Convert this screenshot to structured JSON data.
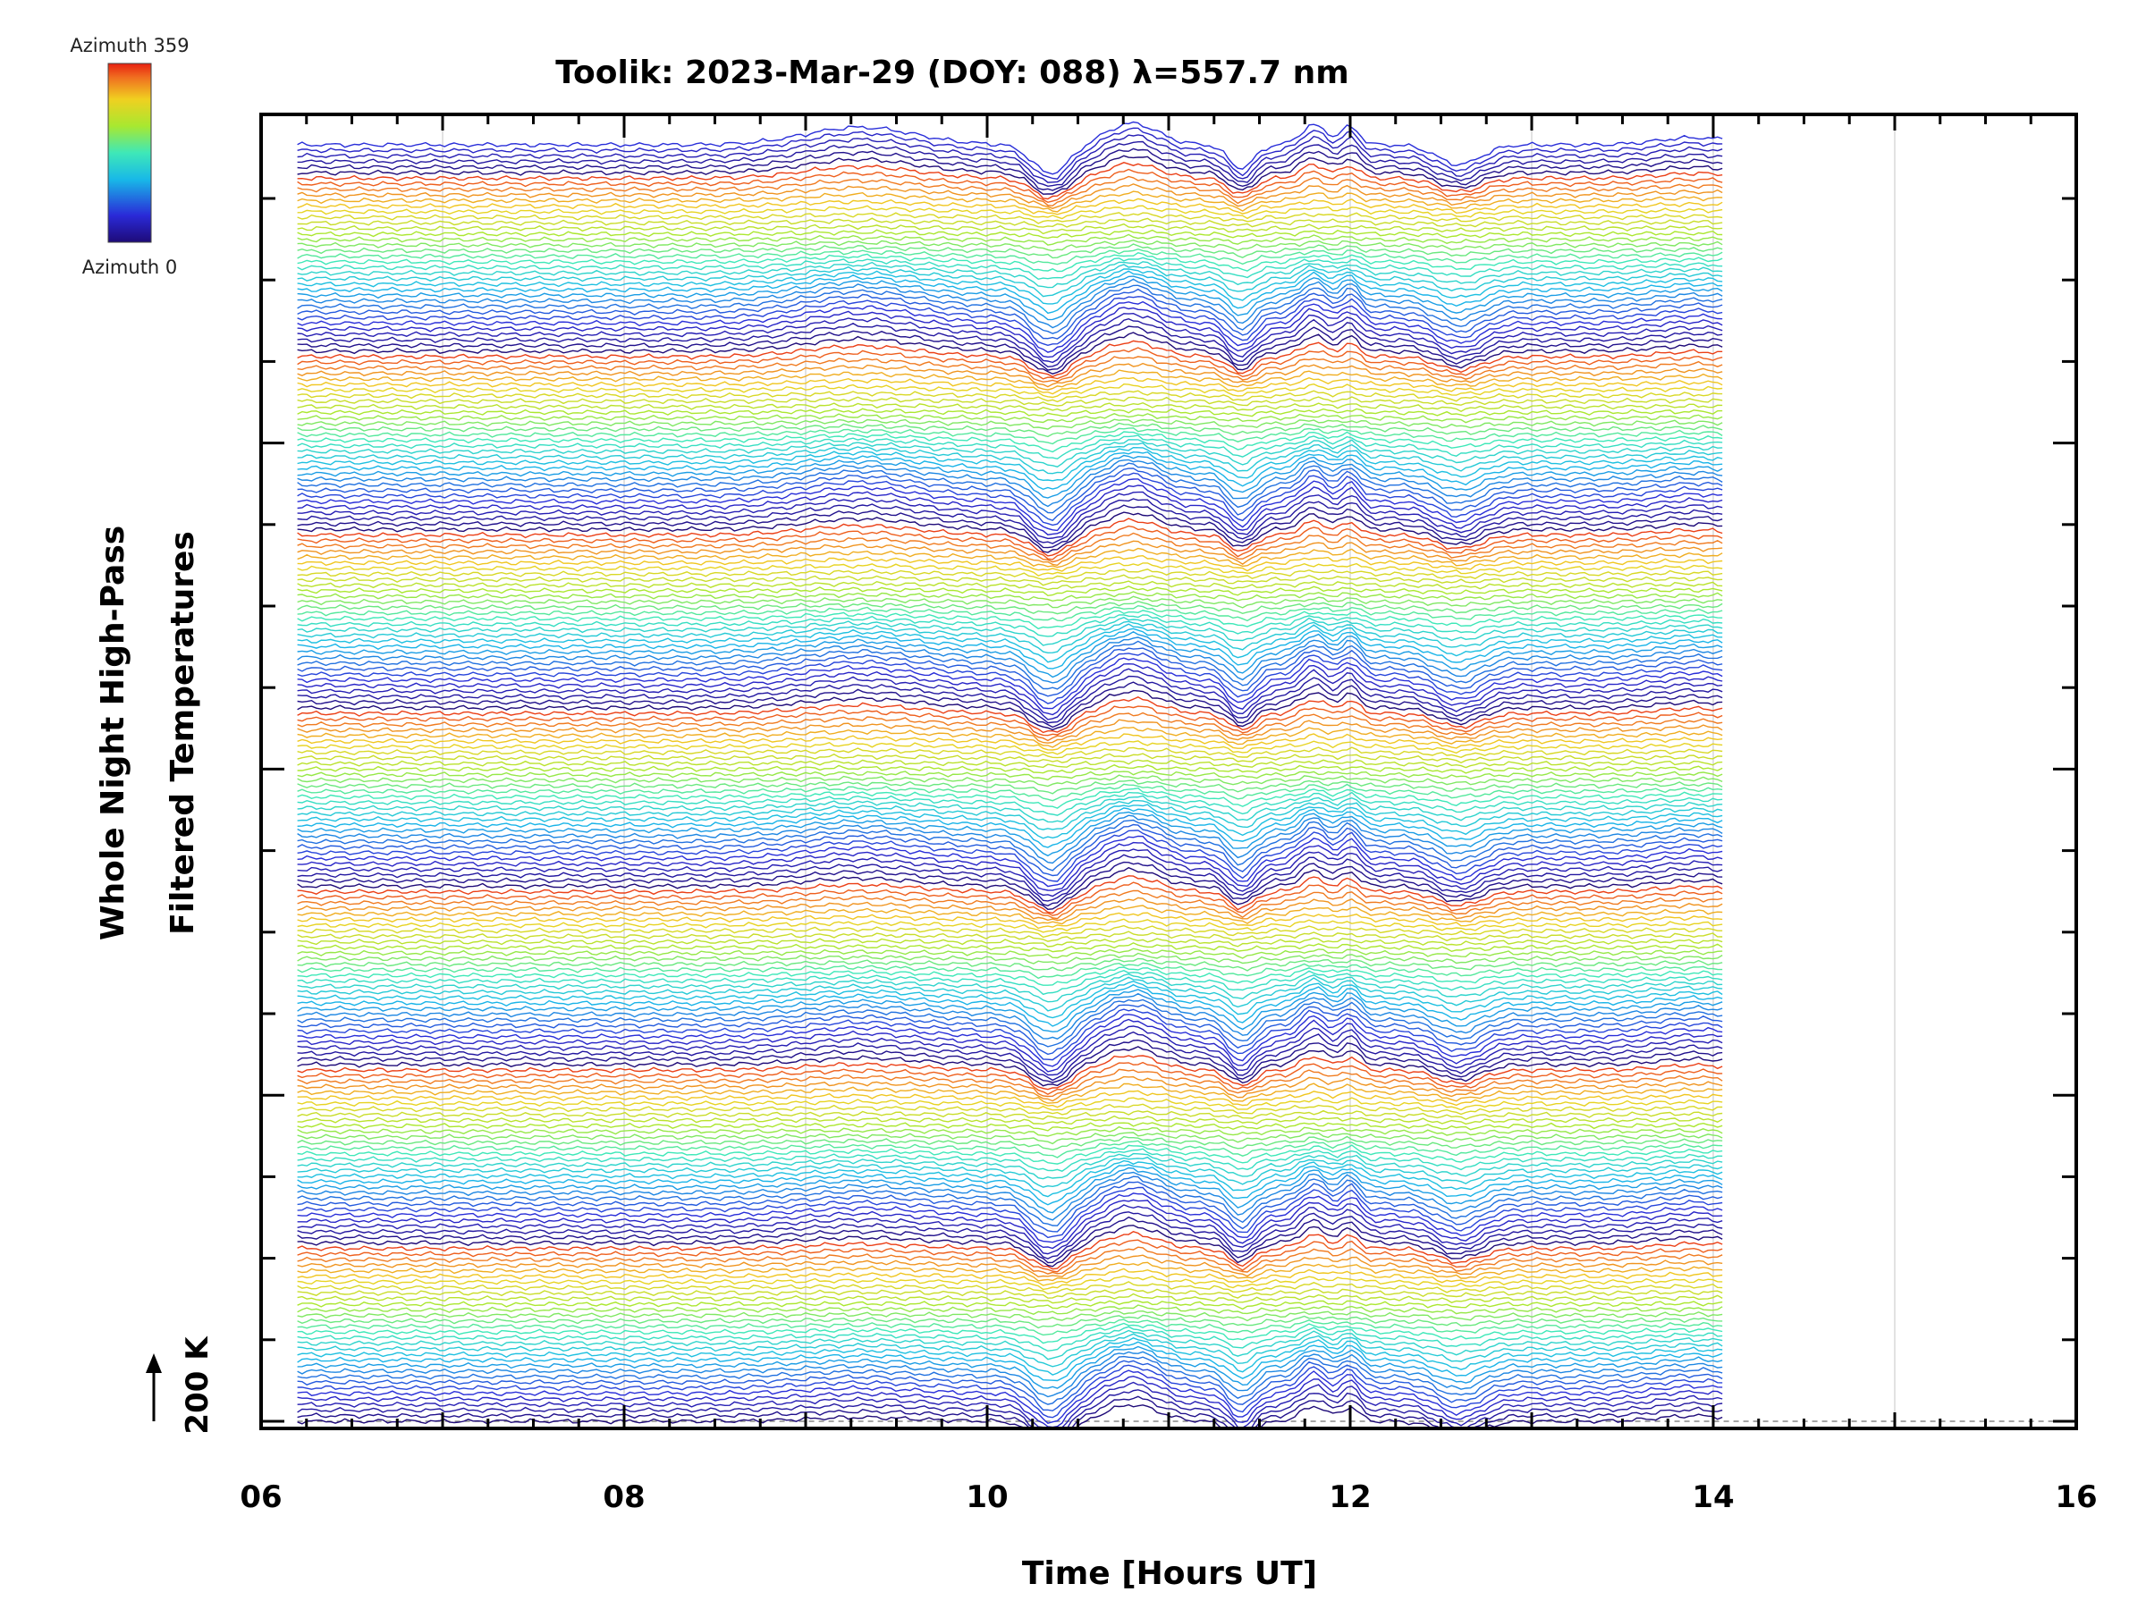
{
  "chart_data": {
    "type": "line",
    "title": "Toolik: 2023-Mar-29 (DOY: 088) λ=557.7 nm",
    "xlabel": "Time [Hours UT]",
    "ylabel_line1": "Whole Night High-Pass",
    "ylabel_line2": "Filtered Temperatures",
    "scale_label": "200 K",
    "xlim": [
      6,
      16
    ],
    "x_ticks": [
      "06",
      "08",
      "10",
      "12",
      "14",
      "16"
    ],
    "data_x_range": [
      6.2,
      14.05
    ],
    "grid": true,
    "colorbar": {
      "label_top": "Azimuth 359",
      "label_bottom": "Azimuth 0",
      "colormap": "rainbow",
      "azimuth_range": [
        0,
        359
      ]
    },
    "n_traces": 230,
    "traces_per_ring": 32,
    "features": {
      "dips_hours": [
        10.35,
        11.4,
        12.6
      ],
      "peaks_hours": [
        9.3,
        10.8,
        11.8,
        12.0
      ]
    },
    "colors": {
      "axis": "#000000",
      "grid": "#d8d8d8",
      "baseline": "#888888"
    }
  }
}
